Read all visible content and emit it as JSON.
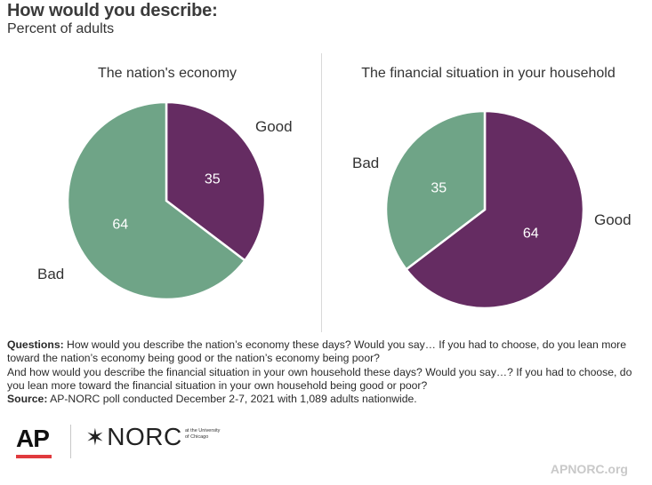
{
  "header": {
    "title": "How would you describe:",
    "subtitle": "Percent of adults"
  },
  "colors": {
    "good": "#652c62",
    "bad": "#6fa487"
  },
  "chart_data": [
    {
      "type": "pie",
      "title": "The nation's economy",
      "series": [
        {
          "name": "Good",
          "value": 35,
          "color": "#652c62"
        },
        {
          "name": "Bad",
          "value": 64,
          "color": "#6fa487"
        }
      ]
    },
    {
      "type": "pie",
      "title": "The financial situation in your household",
      "series": [
        {
          "name": "Good",
          "value": 64,
          "color": "#652c62"
        },
        {
          "name": "Bad",
          "value": 35,
          "color": "#6fa487"
        }
      ]
    }
  ],
  "notes": {
    "questions_label": "Questions:",
    "questions_text_1": "How would you describe the nation’s economy these days? Would you say… If you had to choose, do you lean more toward the nation’s economy being good or the nation’s economy being poor?",
    "questions_text_2": "And how would you describe the financial situation in your own household these days? Would you say…? If you had to choose, do you lean more toward the financial situation in your own household being good or poor?",
    "source_label": "Source:",
    "source_text": "AP-NORC poll conducted December 2-7, 2021 with 1,089 adults nationwide."
  },
  "footer": {
    "logo_ap": "AP",
    "logo_norc": "NORC",
    "logo_norc_sub": "at the University of Chicago",
    "link": "APNORC.org"
  }
}
